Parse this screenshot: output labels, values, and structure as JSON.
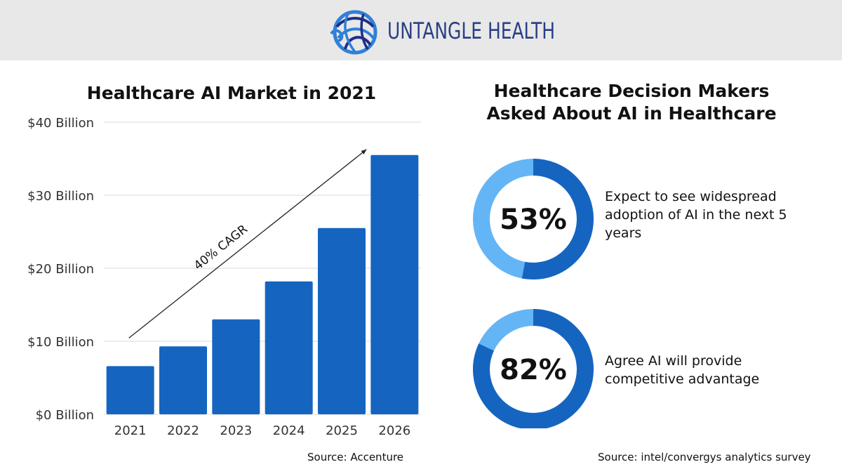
{
  "header": {
    "brand_name": "UNTANGLE HEALTH",
    "colors": {
      "background": "#e8e8e8",
      "brand": "#2a3e86",
      "logo_blue": "#2f80d8",
      "logo_navy": "#1e2f86"
    },
    "logo_icon": "yarn-ball-logo"
  },
  "bar_chart": {
    "title": "Healthcare AI Market in 2021",
    "source": "Source: Accenture",
    "trend_label": "40% CAGR"
  },
  "donut_section": {
    "title_line1": "Healthcare Decision Makers",
    "title_line2": "Asked About AI in Healthcare",
    "source": "Source: intel/convergys analytics survey",
    "stats": [
      {
        "value_label": "53%",
        "text": "Expect to see widespread adoption of AI in the next 5 years"
      },
      {
        "value_label": "82%",
        "text": "Agree AI will provide competitive advantage"
      }
    ]
  },
  "chart_data": [
    {
      "type": "bar",
      "title": "Healthcare AI Market in 2021",
      "categories": [
        "2021",
        "2022",
        "2023",
        "2024",
        "2025",
        "2026"
      ],
      "values": [
        6.6,
        9.3,
        13.0,
        18.2,
        25.5,
        35.5
      ],
      "ylim": [
        0,
        40
      ],
      "y_ticks": [
        0,
        10,
        20,
        30,
        40
      ],
      "y_tick_labels": [
        "$0 Billion",
        "$10 Billion",
        "$20 Billion",
        "$30 Billion",
        "$40 Billion"
      ],
      "annotation": "40% CAGR",
      "grid": true,
      "bar_color": "#1565c0"
    },
    {
      "type": "pie",
      "variant": "donut",
      "label": "53%",
      "value": 53,
      "colors": {
        "value": "#1565c0",
        "remainder": "#64b5f6"
      }
    },
    {
      "type": "pie",
      "variant": "donut",
      "label": "82%",
      "value": 82,
      "colors": {
        "value": "#1565c0",
        "remainder": "#64b5f6"
      }
    }
  ]
}
